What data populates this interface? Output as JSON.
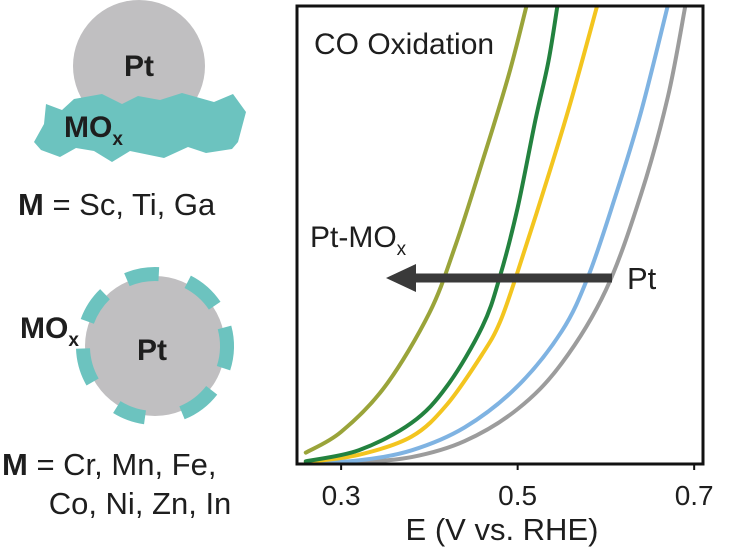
{
  "schematic_top": {
    "particle_label": "Pt",
    "support_label_base": "MO",
    "support_label_sub": "x",
    "caption_bold": "M",
    "caption_rest": " = Sc, Ti, Ga"
  },
  "schematic_bottom": {
    "particle_label": "Pt",
    "oxide_label_base": "MO",
    "oxide_label_sub": "x",
    "caption_line1_bold": "M",
    "caption_line1_rest": " = Cr, Mn, Fe,",
    "caption_line2": "Co, Ni, Zn, In"
  },
  "colors": {
    "particle": "#c0bfc1",
    "oxide": "#6cc3bf",
    "arrow": "#3a3a3a"
  },
  "chart_data": {
    "type": "line",
    "title": "CO Oxidation",
    "xlabel": "E (V vs. RHE)",
    "ylabel": "",
    "xlim": [
      0.25,
      0.71
    ],
    "ylim": [
      0,
      1
    ],
    "x_ticks": [
      "0.3",
      "0.5",
      "0.7"
    ],
    "annotations": {
      "left_label_base": "Pt-MO",
      "left_label_sub": "x",
      "right_label": "Pt"
    },
    "series": [
      {
        "color": "#9aa43a",
        "points": [
          [
            0.26,
            0.025
          ],
          [
            0.3,
            0.07
          ],
          [
            0.35,
            0.17
          ],
          [
            0.4,
            0.33
          ],
          [
            0.43,
            0.48
          ],
          [
            0.46,
            0.66
          ],
          [
            0.49,
            0.85
          ],
          [
            0.51,
            1.0
          ]
        ]
      },
      {
        "color": "#23823f",
        "points": [
          [
            0.26,
            0.006
          ],
          [
            0.32,
            0.03
          ],
          [
            0.38,
            0.09
          ],
          [
            0.42,
            0.17
          ],
          [
            0.46,
            0.3
          ],
          [
            0.48,
            0.41
          ],
          [
            0.5,
            0.56
          ],
          [
            0.52,
            0.75
          ],
          [
            0.535,
            0.88
          ],
          [
            0.545,
            1.0
          ]
        ]
      },
      {
        "color": "#f3c51f",
        "points": [
          [
            0.26,
            0.004
          ],
          [
            0.32,
            0.02
          ],
          [
            0.38,
            0.06
          ],
          [
            0.42,
            0.13
          ],
          [
            0.46,
            0.24
          ],
          [
            0.48,
            0.31
          ],
          [
            0.5,
            0.42
          ],
          [
            0.53,
            0.6
          ],
          [
            0.56,
            0.79
          ],
          [
            0.59,
            1.0
          ]
        ]
      },
      {
        "color": "#7fb3e2",
        "points": [
          [
            0.26,
            0.002
          ],
          [
            0.32,
            0.008
          ],
          [
            0.38,
            0.03
          ],
          [
            0.44,
            0.08
          ],
          [
            0.5,
            0.17
          ],
          [
            0.55,
            0.29
          ],
          [
            0.58,
            0.41
          ],
          [
            0.61,
            0.58
          ],
          [
            0.64,
            0.77
          ],
          [
            0.67,
            1.0
          ]
        ]
      },
      {
        "color": "#9c9c9c",
        "points": [
          [
            0.26,
            0.001
          ],
          [
            0.32,
            0.004
          ],
          [
            0.38,
            0.015
          ],
          [
            0.44,
            0.05
          ],
          [
            0.5,
            0.12
          ],
          [
            0.55,
            0.22
          ],
          [
            0.6,
            0.38
          ],
          [
            0.64,
            0.59
          ],
          [
            0.67,
            0.8
          ],
          [
            0.69,
            1.0
          ]
        ]
      }
    ]
  }
}
